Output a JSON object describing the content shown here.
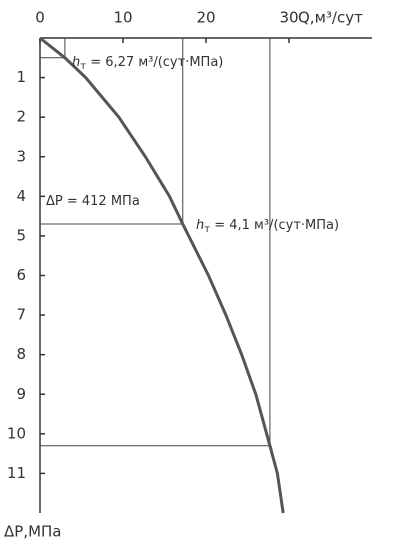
{
  "chart_data": {
    "type": "line",
    "x_label": "Q,м³/сут",
    "y_label": "ΔP,МПа",
    "xlim": [
      0,
      40
    ],
    "ylim": [
      0,
      12
    ],
    "xticks": [
      0,
      10,
      20,
      30
    ],
    "yticks": [
      1,
      2,
      3,
      4,
      5,
      6,
      7,
      8,
      9,
      10,
      11
    ],
    "y_inverted": true,
    "series": [
      {
        "color": "#555555",
        "x": [
          0,
          3,
          5.5,
          9.5,
          12.7,
          15.6,
          17.2,
          20.3,
          22.4,
          24.3,
          26,
          27.7,
          28.6,
          29.3
        ],
        "values": [
          0,
          0.5,
          1,
          2,
          3,
          4,
          4.7,
          6,
          7,
          8,
          9,
          10.3,
          11,
          12
        ]
      }
    ],
    "guides": [
      {
        "x": 3,
        "y": 0.5
      },
      {
        "x": 17.2,
        "y": 4.7
      },
      {
        "x": 27.7,
        "y": 10.3
      }
    ],
    "annotations": [
      {
        "symbol": "h",
        "sub": "т",
        "text": " = 6,27 м³/(сут·МПа)"
      },
      {
        "symbol": "ΔP",
        "sub": "",
        "text": " = 412 МПа"
      },
      {
        "symbol": "h",
        "sub": "т",
        "text": " = 4,1 м³/(сут·МПа)"
      }
    ]
  }
}
